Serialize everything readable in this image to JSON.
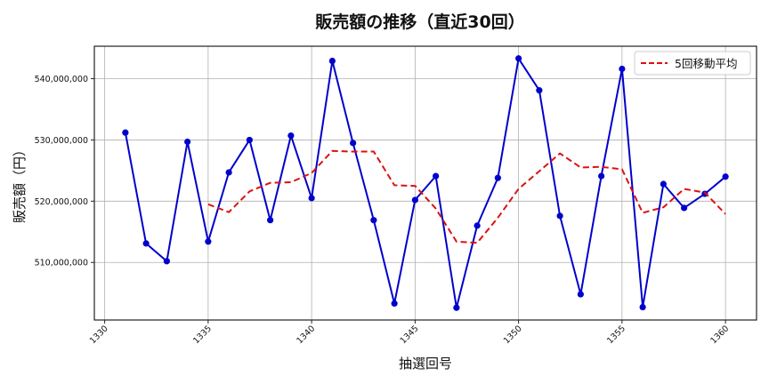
{
  "chart_data": {
    "type": "line",
    "title": "販売額の推移（直近30回）",
    "xlabel": "抽選回号",
    "ylabel": "販売額（円）",
    "x": [
      1331,
      1332,
      1333,
      1334,
      1335,
      1336,
      1337,
      1338,
      1339,
      1340,
      1341,
      1342,
      1343,
      1344,
      1345,
      1346,
      1347,
      1348,
      1349,
      1350,
      1351,
      1352,
      1353,
      1354,
      1355,
      1356,
      1357,
      1358,
      1359,
      1360
    ],
    "series": [
      {
        "name": "販売額",
        "color": "#0000cc",
        "style": "solid",
        "marker": "circle",
        "values": [
          531200000,
          513100000,
          510200000,
          529700000,
          513400000,
          524700000,
          530000000,
          516900000,
          530700000,
          520500000,
          542900000,
          529500000,
          516900000,
          503300000,
          520200000,
          524100000,
          502600000,
          516000000,
          523800000,
          543300000,
          538100000,
          517600000,
          504800000,
          524100000,
          541600000,
          502700000,
          522800000,
          518900000,
          521200000,
          524000000
        ]
      },
      {
        "name": "5回移動平均",
        "color": "#dd1111",
        "style": "dashed",
        "marker": "none",
        "values": [
          null,
          null,
          null,
          null,
          519500000,
          518200000,
          521600000,
          523000000,
          523100000,
          524600000,
          528200000,
          528100000,
          528100000,
          522600000,
          522500000,
          518800000,
          513400000,
          513200000,
          517300000,
          522000000,
          524900000,
          527800000,
          525500000,
          525600000,
          525200000,
          518100000,
          519000000,
          522000000,
          521400000,
          517900000
        ]
      }
    ],
    "xticks": [
      1330,
      1335,
      1340,
      1345,
      1350,
      1355,
      1360
    ],
    "yticks": [
      510000000,
      520000000,
      530000000,
      540000000
    ],
    "ytick_labels": [
      "510,000,000",
      "520,000,000",
      "530,000,000",
      "540,000,000"
    ],
    "xlim": [
      1329.5,
      1361.5
    ],
    "ylim": [
      500600000,
      545300000
    ],
    "grid": true,
    "legend": {
      "position": "upper right",
      "entries": [
        "5回移動平均"
      ]
    }
  }
}
